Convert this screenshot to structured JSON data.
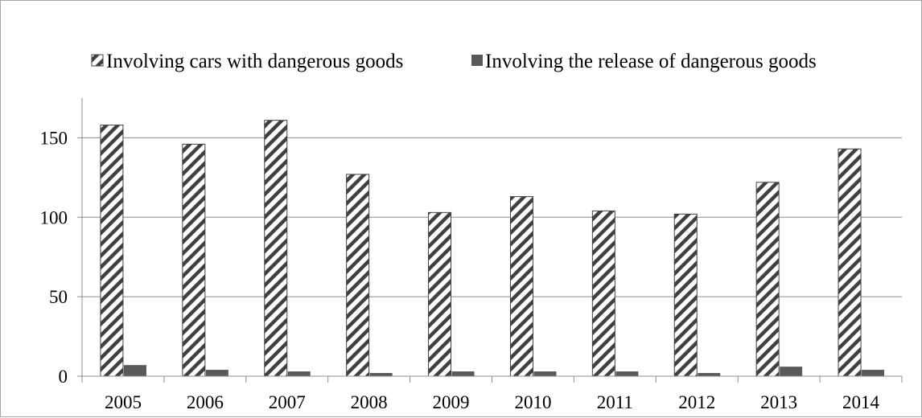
{
  "chart_data": {
    "type": "bar",
    "categories": [
      "2005",
      "2006",
      "2007",
      "2008",
      "2009",
      "2010",
      "2011",
      "2012",
      "2013",
      "2014"
    ],
    "series": [
      {
        "name": "Involving cars with dangerous goods",
        "values": [
          158,
          146,
          161,
          127,
          103,
          113,
          104,
          102,
          122,
          143
        ],
        "color": "#404040",
        "fill_pattern": "diagonal-hatch"
      },
      {
        "name": "Involving the release of dangerous goods",
        "values": [
          7,
          4,
          3,
          2,
          3,
          3,
          3,
          2,
          6,
          4
        ],
        "color": "#595959",
        "fill_pattern": "solid"
      }
    ],
    "title": "",
    "xlabel": "",
    "ylabel": "",
    "ylim": [
      0,
      175
    ],
    "yticks": [
      0,
      50,
      100,
      150
    ],
    "grid": true,
    "legend_position": "top"
  }
}
